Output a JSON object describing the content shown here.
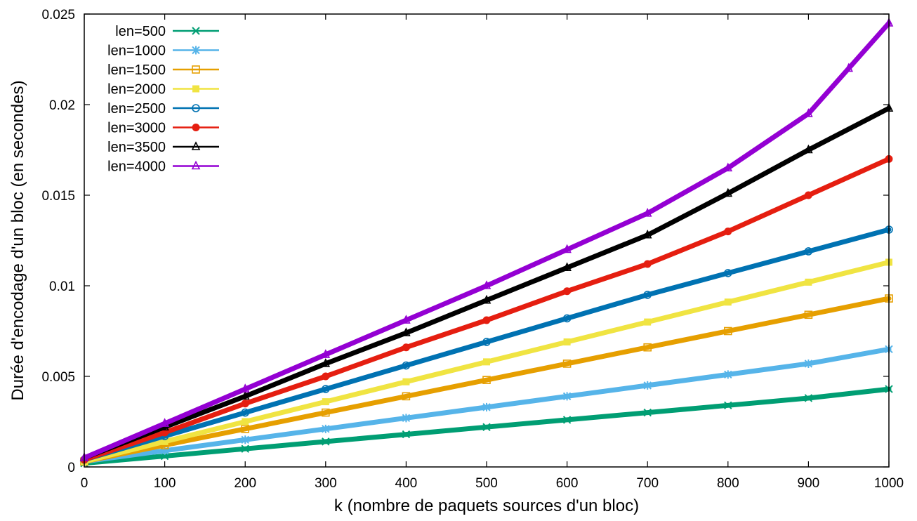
{
  "chart_data": {
    "type": "line",
    "title": "",
    "xlabel": "k (nombre de paquets sources d'un bloc)",
    "ylabel": "Durée d'encodage d'un bloc (en secondes)",
    "xlim": [
      0,
      1000
    ],
    "ylim": [
      0,
      0.025
    ],
    "xticks": [
      0,
      100,
      200,
      300,
      400,
      500,
      600,
      700,
      800,
      900,
      1000
    ],
    "xtick_labels": [
      "0",
      "100",
      "200",
      "300",
      "400",
      "500",
      "600",
      "700",
      "800",
      "900",
      "1000"
    ],
    "yticks": [
      0,
      0.005,
      0.01,
      0.015,
      0.02,
      0.025
    ],
    "ytick_labels": [
      "0",
      "0.005",
      "0.01",
      "0.015",
      "0.02",
      "0.025"
    ],
    "grid": false,
    "legend_position": "top-left",
    "series": [
      {
        "name": "len=500",
        "color": "#009e73",
        "marker": "x",
        "x": [
          0,
          100,
          200,
          300,
          400,
          500,
          600,
          700,
          800,
          900,
          1000
        ],
        "y": [
          0.0002,
          0.0006,
          0.001,
          0.0014,
          0.0018,
          0.0022,
          0.0026,
          0.003,
          0.0034,
          0.0038,
          0.0043
        ]
      },
      {
        "name": "len=1000",
        "color": "#56b4e9",
        "marker": "asterisk",
        "x": [
          0,
          100,
          200,
          300,
          400,
          500,
          600,
          700,
          800,
          900,
          1000
        ],
        "y": [
          0.0003,
          0.0009,
          0.0015,
          0.0021,
          0.0027,
          0.0033,
          0.0039,
          0.0045,
          0.0051,
          0.0057,
          0.0065
        ]
      },
      {
        "name": "len=1500",
        "color": "#e69f00",
        "marker": "square-open",
        "x": [
          0,
          100,
          200,
          300,
          400,
          500,
          600,
          700,
          800,
          900,
          1000
        ],
        "y": [
          0.0003,
          0.0012,
          0.0021,
          0.003,
          0.0039,
          0.0048,
          0.0057,
          0.0066,
          0.0075,
          0.0084,
          0.0093
        ]
      },
      {
        "name": "len=2000",
        "color": "#f0e442",
        "marker": "square-filled",
        "x": [
          0,
          100,
          200,
          300,
          400,
          500,
          600,
          700,
          800,
          900,
          1000
        ],
        "y": [
          0.0003,
          0.0014,
          0.0025,
          0.0036,
          0.0047,
          0.0058,
          0.0069,
          0.008,
          0.0091,
          0.0102,
          0.0113
        ]
      },
      {
        "name": "len=2500",
        "color": "#0072b2",
        "marker": "circle-open",
        "x": [
          0,
          100,
          200,
          300,
          400,
          500,
          600,
          700,
          800,
          900,
          1000
        ],
        "y": [
          0.0004,
          0.0017,
          0.003,
          0.0043,
          0.0056,
          0.0069,
          0.0082,
          0.0095,
          0.0107,
          0.0119,
          0.0131
        ]
      },
      {
        "name": "len=3000",
        "color": "#e51e10",
        "marker": "circle-filled",
        "x": [
          0,
          100,
          200,
          300,
          400,
          500,
          600,
          700,
          800,
          900,
          1000
        ],
        "y": [
          0.0004,
          0.0019,
          0.0035,
          0.005,
          0.0066,
          0.0081,
          0.0097,
          0.0112,
          0.013,
          0.015,
          0.017
        ]
      },
      {
        "name": "len=3500",
        "color": "#000000",
        "marker": "triangle-open",
        "x": [
          0,
          100,
          200,
          300,
          400,
          500,
          600,
          700,
          800,
          900,
          1000
        ],
        "y": [
          0.0005,
          0.0022,
          0.0039,
          0.0057,
          0.0074,
          0.0092,
          0.011,
          0.0128,
          0.0151,
          0.0175,
          0.0198
        ]
      },
      {
        "name": "len=4000",
        "color": "#9400d3",
        "marker": "triangle-open",
        "x": [
          0,
          100,
          200,
          300,
          400,
          500,
          600,
          700,
          800,
          900,
          950,
          1000
        ],
        "y": [
          0.0005,
          0.0024,
          0.0043,
          0.0062,
          0.0081,
          0.01,
          0.012,
          0.014,
          0.0165,
          0.0195,
          0.022,
          0.0245
        ]
      }
    ]
  }
}
